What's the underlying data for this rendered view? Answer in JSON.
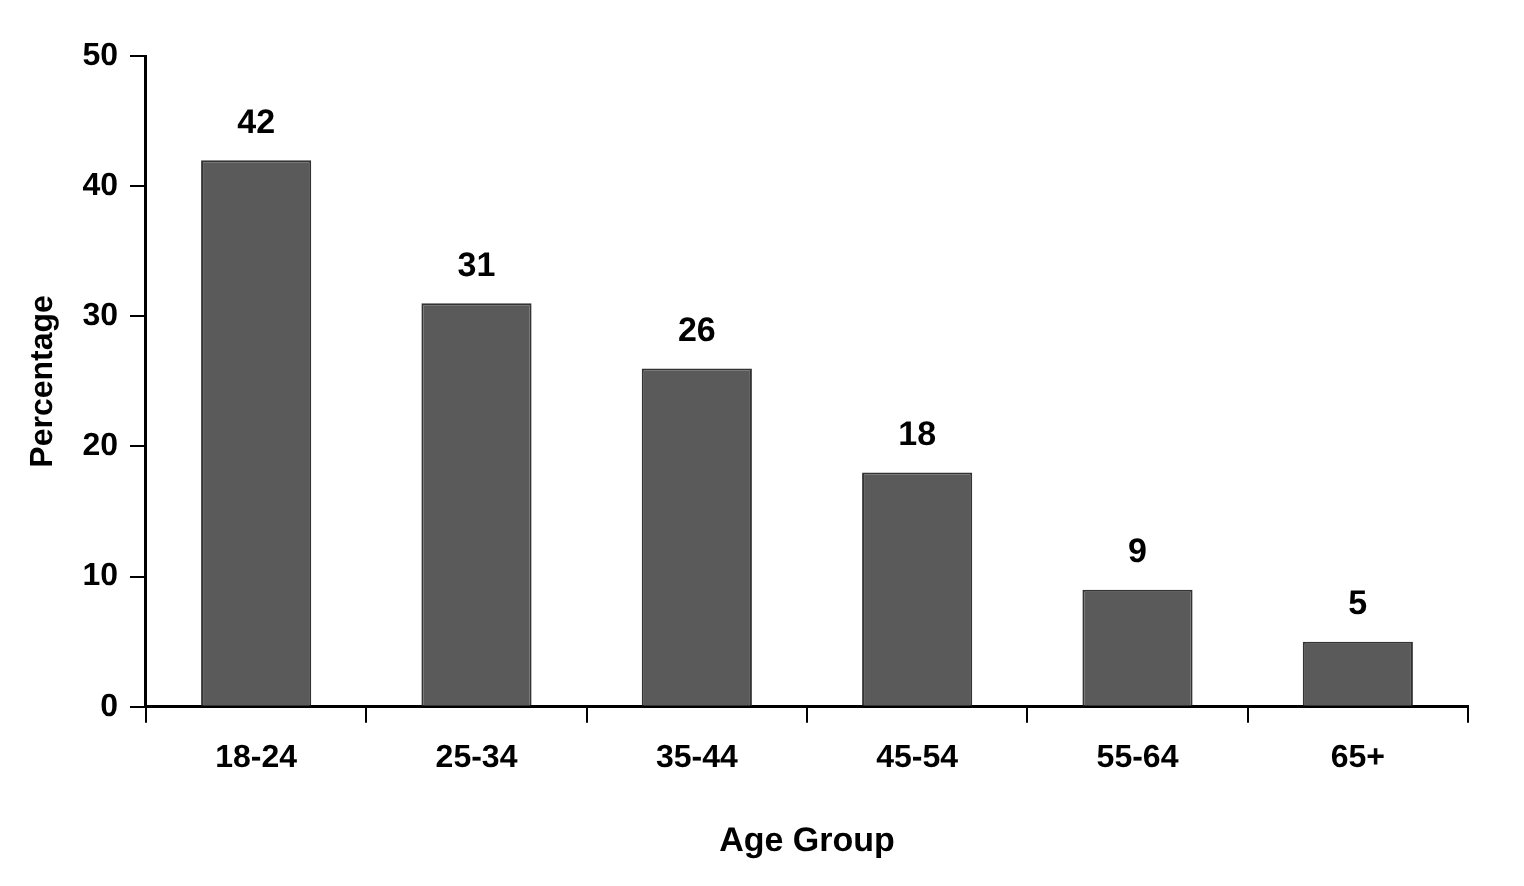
{
  "chart_data": {
    "type": "bar",
    "xlabel": "Age Group",
    "ylabel": "Percentage",
    "categories": [
      "18-24",
      "25-34",
      "35-44",
      "45-54",
      "55-64",
      "65+"
    ],
    "values": [
      42,
      31,
      26,
      18,
      9,
      5
    ],
    "color": "#5a5a5a",
    "ylim": [
      0,
      50
    ],
    "yticks": [
      0,
      10,
      20,
      30,
      40,
      50
    ],
    "grid": false,
    "legend": false,
    "data_labels": true
  }
}
